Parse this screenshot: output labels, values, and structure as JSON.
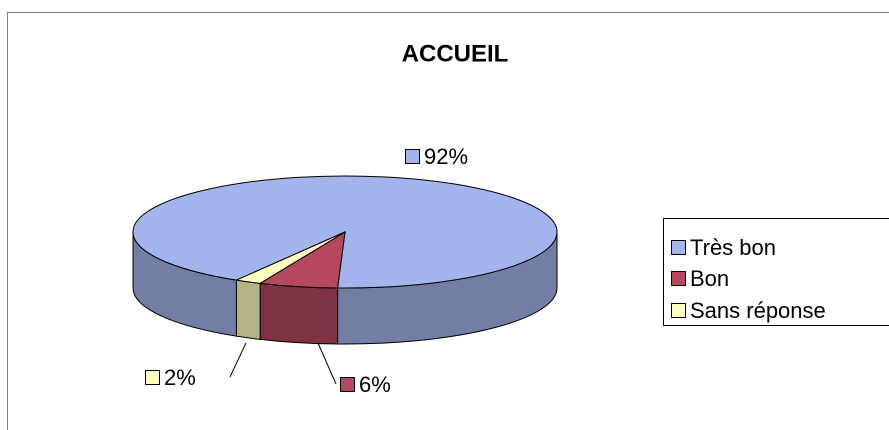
{
  "chart_data": {
    "type": "pie",
    "title": "ACCUEIL",
    "categories": [
      "Très bon",
      "Bon",
      "Sans réponse"
    ],
    "values": [
      92,
      6,
      2
    ],
    "value_labels": [
      "92%",
      "6%",
      "2%"
    ],
    "colors": [
      "#a4b4ec",
      "#b5475f",
      "#ffffc0"
    ],
    "legend": "right",
    "three_d": true
  }
}
